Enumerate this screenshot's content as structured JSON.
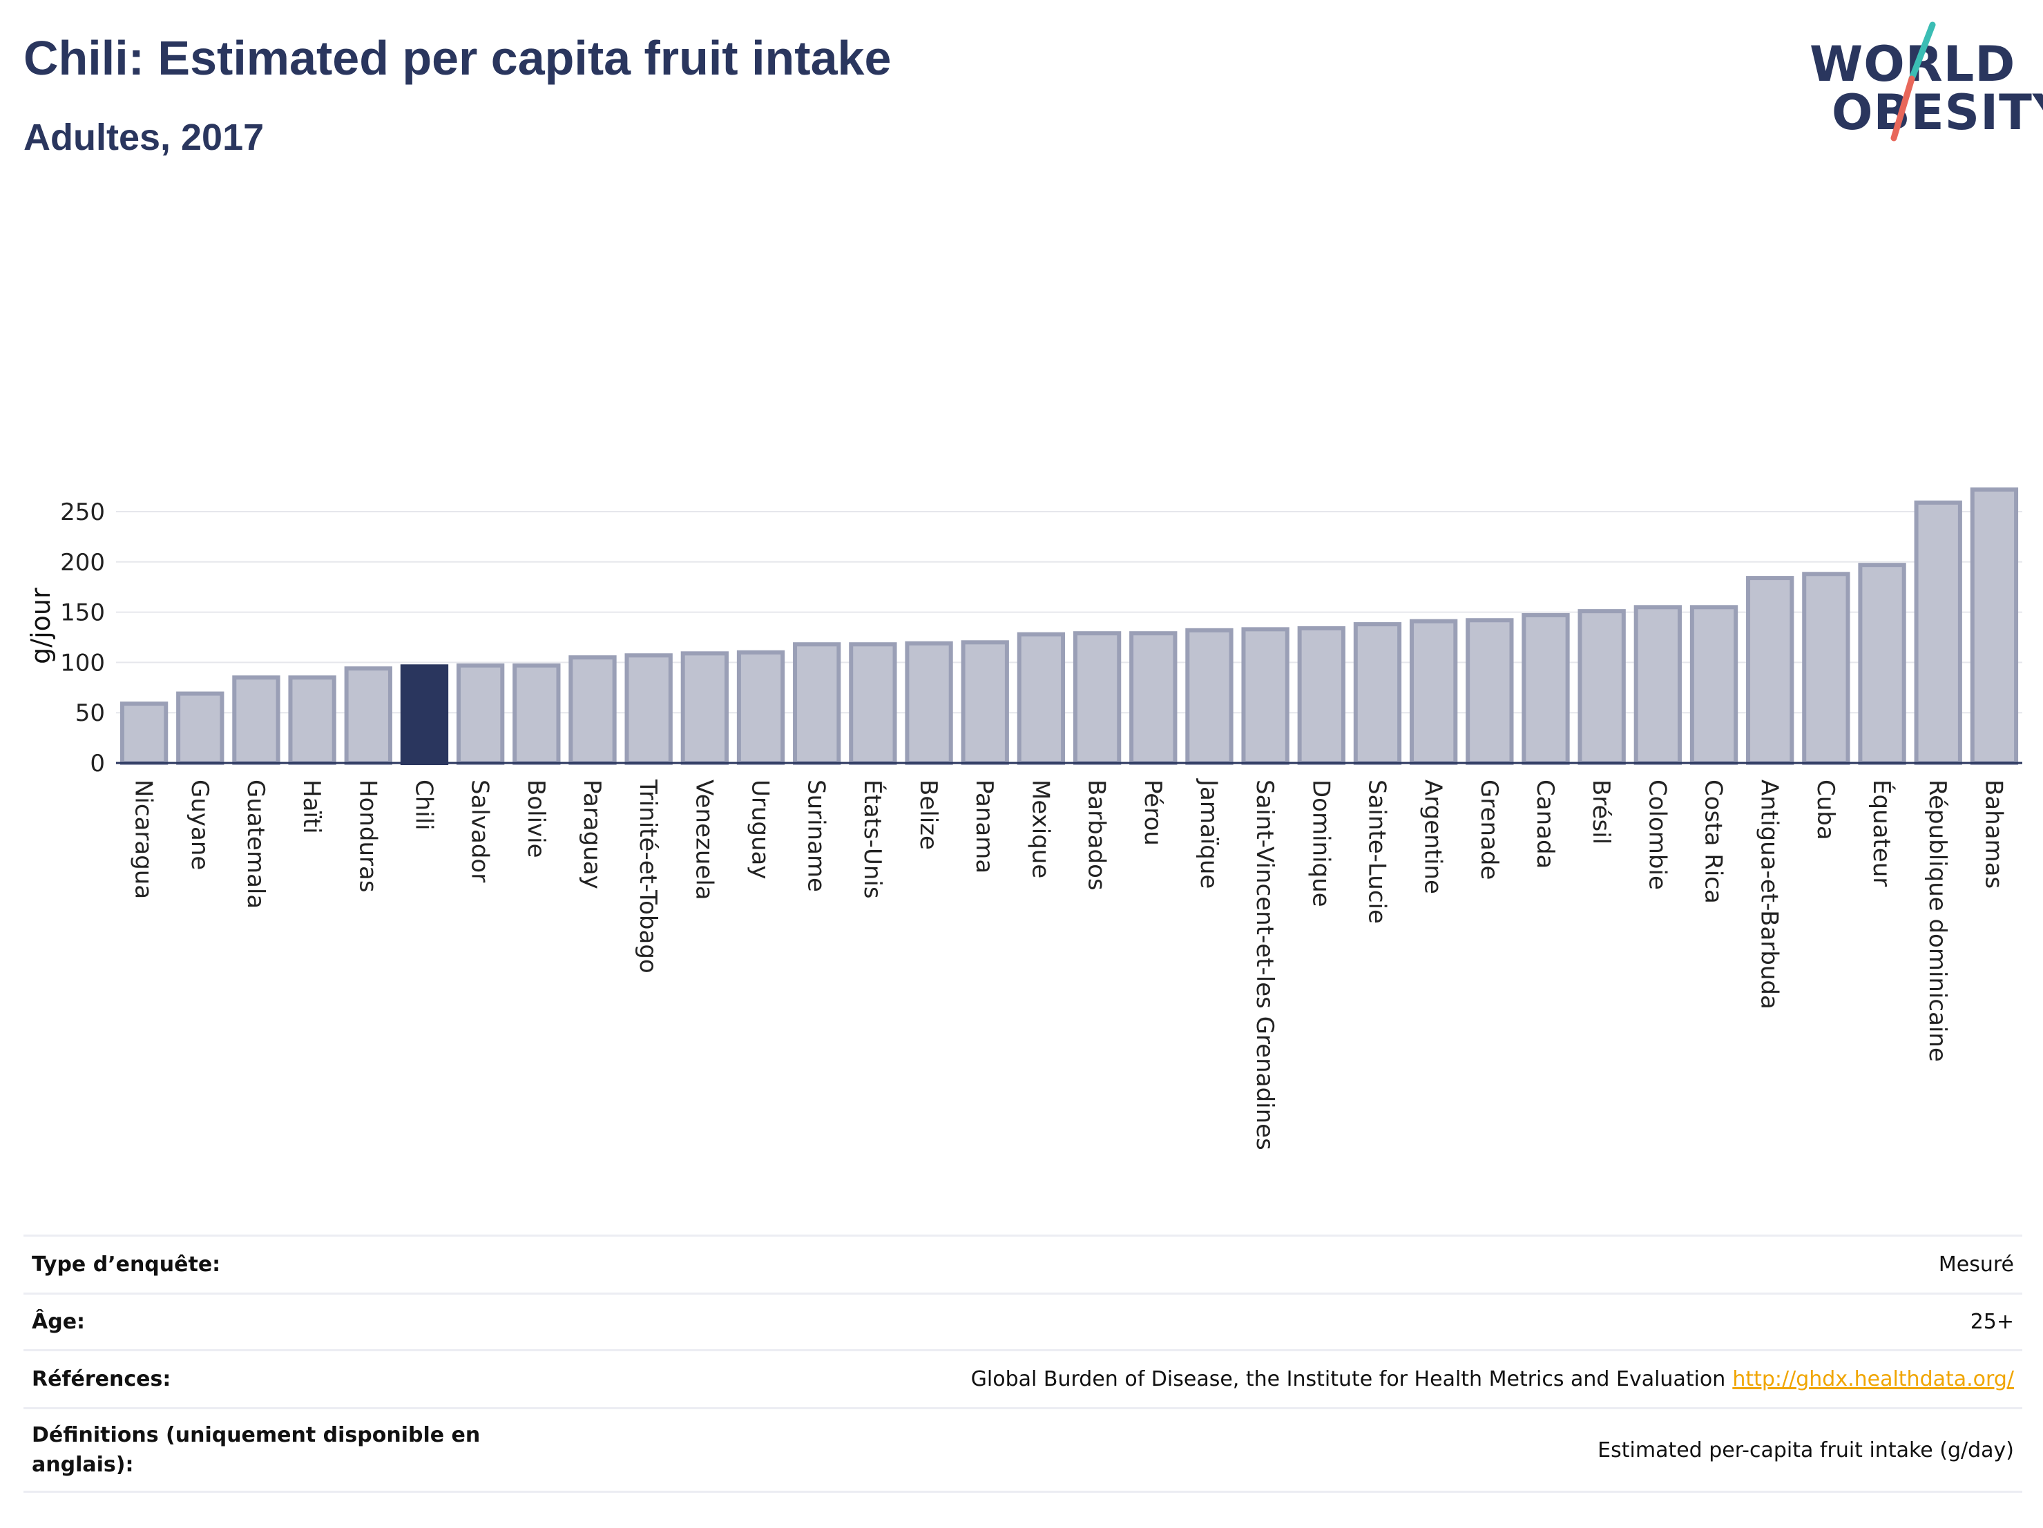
{
  "header": {
    "title": "Chili: Estimated per capita fruit intake",
    "subtitle": "Adultes, 2017"
  },
  "logo": {
    "line1": "WORLD",
    "line2": "OBESITY",
    "slash_colors": [
      "#3bbdb4",
      "#e8675a"
    ]
  },
  "colors": {
    "highlight": "#2a365e",
    "bar_fill": "#bfc2d0",
    "bar_stroke": "#9a9fb6"
  },
  "chart_data": {
    "type": "bar",
    "ylabel": "g/jour",
    "ylim": [
      0,
      280
    ],
    "yticks": [
      0,
      50,
      100,
      150,
      200,
      250
    ],
    "highlight": "Chili",
    "grid": true,
    "categories": [
      "Nicaragua",
      "Guyane",
      "Guatemala",
      "Haïti",
      "Honduras",
      "Chili",
      "Salvador",
      "Bolivie",
      "Paraguay",
      "Trinité-et-Tobago",
      "Venezuela",
      "Uruguay",
      "Suriname",
      "États-Unis",
      "Belize",
      "Panama",
      "Mexique",
      "Barbados",
      "Pérou",
      "Jamaïque",
      "Saint-Vincent-et-les Grenadines",
      "Dominique",
      "Sainte-Lucie",
      "Argentine",
      "Grenade",
      "Canada",
      "Brésil",
      "Colombie",
      "Costa Rica",
      "Antigua-et-Barbuda",
      "Cuba",
      "Équateur",
      "République dominicaine",
      "Bahamas"
    ],
    "values": [
      59,
      69,
      85,
      85,
      94,
      96,
      97,
      97,
      105,
      107,
      109,
      110,
      118,
      118,
      119,
      120,
      128,
      129,
      129,
      132,
      133,
      134,
      138,
      141,
      142,
      147,
      151,
      155,
      155,
      184,
      188,
      197,
      259,
      272
    ]
  },
  "info": [
    {
      "label": "Type d’enquête:",
      "value": "Mesuré"
    },
    {
      "label": "Âge:",
      "value": "25+"
    },
    {
      "label": "Références:",
      "value": "Global Burden of Disease, the Institute for Health Metrics and Evaluation",
      "link": "http://ghdx.healthdata.org/"
    },
    {
      "label": "Définitions (uniquement disponible en anglais):",
      "value": "Estimated per-capita fruit intake (g/day)"
    }
  ]
}
